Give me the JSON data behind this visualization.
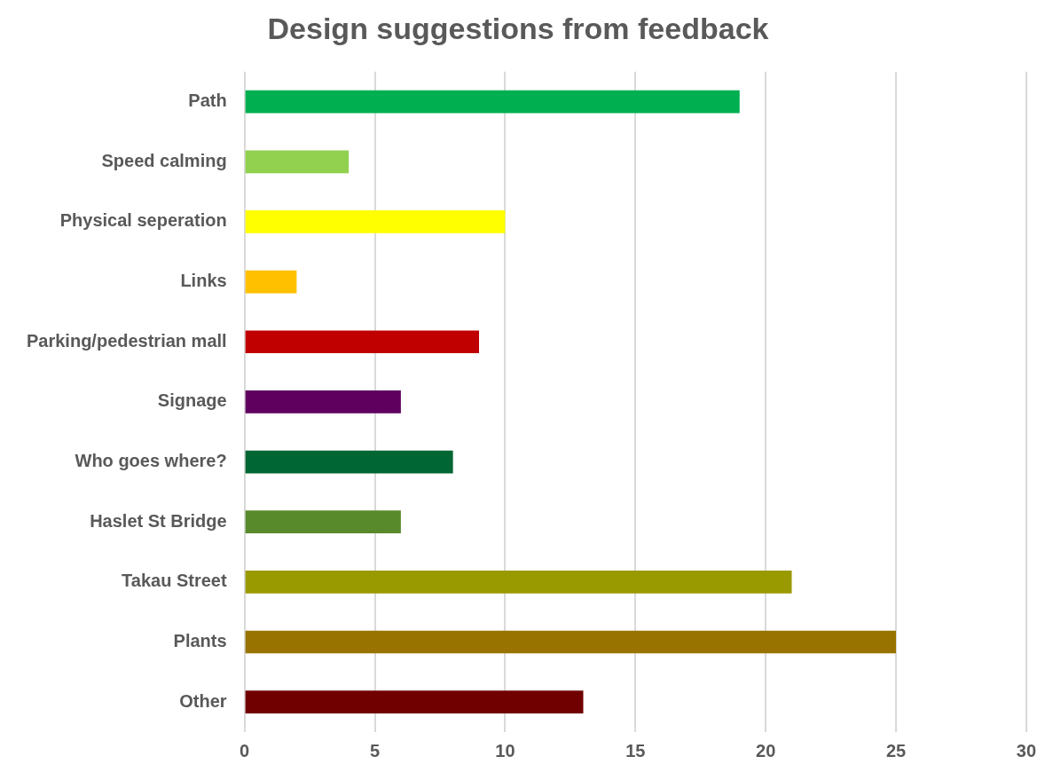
{
  "chart_data": {
    "type": "bar",
    "orientation": "horizontal",
    "title": "Design suggestions from feedback",
    "categories": [
      "Path",
      "Speed calming",
      "Physical seperation",
      "Links",
      "Parking/pedestrian mall",
      "Signage",
      "Who goes where?",
      "Haslet St Bridge",
      "Takau Street",
      "Plants",
      "Other"
    ],
    "values": [
      19,
      4,
      10,
      2,
      9,
      6,
      8,
      6,
      21,
      25,
      13
    ],
    "colors": [
      "#00b050",
      "#92d050",
      "#ffff00",
      "#ffc000",
      "#c00000",
      "#5f005f",
      "#006633",
      "#588a2b",
      "#999900",
      "#997300",
      "#700000"
    ],
    "xlim": [
      0,
      30
    ],
    "xticks": [
      0,
      5,
      10,
      15,
      20,
      25,
      30
    ],
    "grid": "x",
    "legend": false
  }
}
